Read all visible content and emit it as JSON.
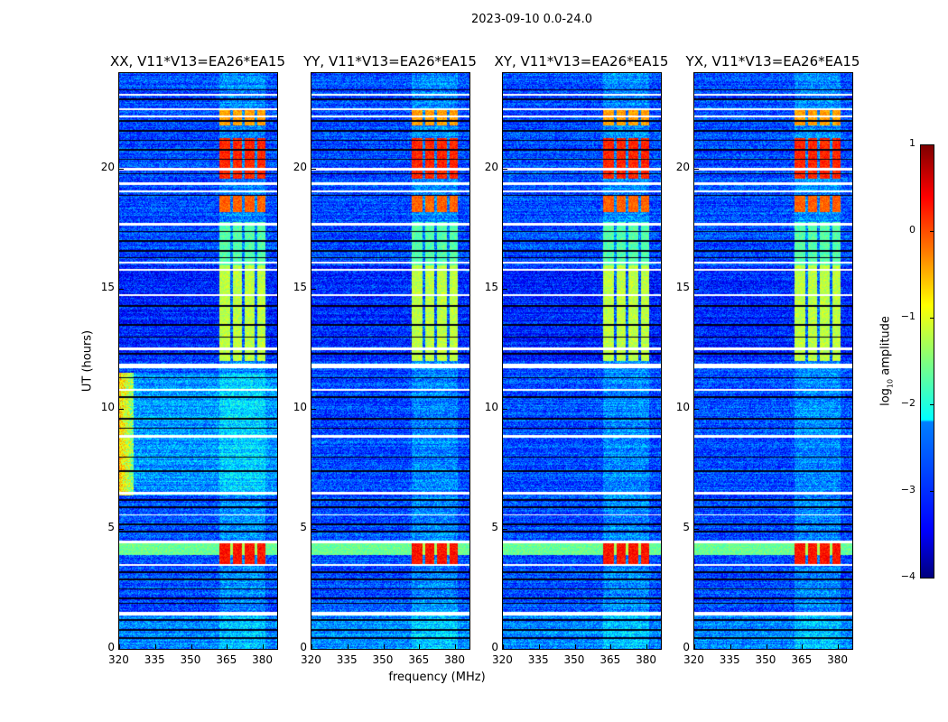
{
  "suptitle": "2023-09-10 0.0-24.0",
  "chart_data": {
    "type": "heatmap",
    "xlabel": "frequency (MHz)",
    "ylabel": "UT (hours)",
    "xlim": [
      320,
      386
    ],
    "ylim": [
      0,
      24
    ],
    "xticks": [
      "320",
      "335",
      "350",
      "365",
      "380"
    ],
    "yticks": [
      "0",
      "5",
      "10",
      "15",
      "20"
    ],
    "panels": [
      {
        "title": "XX, V11*V13=EA26*EA15",
        "low_freq_rfi": true
      },
      {
        "title": "YY, V11*V13=EA26*EA15",
        "low_freq_rfi": false
      },
      {
        "title": "XY, V11*V13=EA26*EA15",
        "low_freq_rfi": false
      },
      {
        "title": "YX, V11*V13=EA26*EA15",
        "low_freq_rfi": false
      }
    ],
    "colorbar": {
      "label": "log10 amplitude",
      "label_main": "log",
      "label_sub": "10",
      "label_rest": " amplitude",
      "range": [
        -4,
        1
      ],
      "ticks": [
        "1",
        "0",
        "−1",
        "−2",
        "−3",
        "−4"
      ],
      "colormap": "jet"
    },
    "background_level": -3.0,
    "rfi_band_mhz": [
      362,
      381
    ],
    "rfi_subband_gaps_mhz": [
      367,
      372,
      377
    ],
    "rfi_segments": [
      {
        "hours": [
          12.0,
          16.0
        ],
        "level": -1.2
      },
      {
        "hours": [
          16.0,
          17.8
        ],
        "level": -1.7
      },
      {
        "hours": [
          18.2,
          18.9
        ],
        "level": -0.1
      },
      {
        "hours": [
          19.6,
          21.3
        ],
        "level": 0.2
      },
      {
        "hours": [
          21.8,
          22.5
        ],
        "level": -0.4
      },
      {
        "hours": [
          3.5,
          4.4
        ],
        "level": 0.3
      }
    ],
    "broadband_segments": [
      {
        "hours": [
          3.9,
          4.4
        ],
        "level": -1.6
      }
    ],
    "flagged_hours": [
      [
        23.05,
        23.15
      ],
      [
        22.45,
        22.55
      ],
      [
        22.15,
        22.22
      ],
      [
        19.95,
        20.05
      ],
      [
        19.35,
        19.45
      ],
      [
        19.05,
        19.12
      ],
      [
        17.65,
        17.75
      ],
      [
        16.05,
        16.15
      ],
      [
        15.75,
        15.82
      ],
      [
        14.7,
        14.8
      ],
      [
        12.45,
        12.55
      ],
      [
        11.7,
        11.9
      ],
      [
        10.75,
        10.82
      ],
      [
        8.8,
        8.9
      ],
      [
        6.45,
        6.55
      ],
      [
        5.55,
        5.62
      ],
      [
        4.42,
        4.5
      ],
      [
        3.45,
        3.52
      ],
      [
        1.4,
        1.55
      ]
    ],
    "dropout_hours": [
      23.3,
      22.9,
      22.0,
      21.6,
      21.2,
      20.8,
      20.4,
      19.8,
      18.9,
      17.4,
      17.0,
      16.6,
      16.3,
      14.3,
      13.5,
      13.0,
      12.3,
      11.3,
      10.5,
      9.6,
      9.2,
      8.0,
      7.4,
      6.2,
      5.9,
      5.2,
      4.9,
      3.2,
      2.9,
      2.5,
      2.1,
      1.9,
      1.2,
      0.8,
      0.45
    ]
  }
}
